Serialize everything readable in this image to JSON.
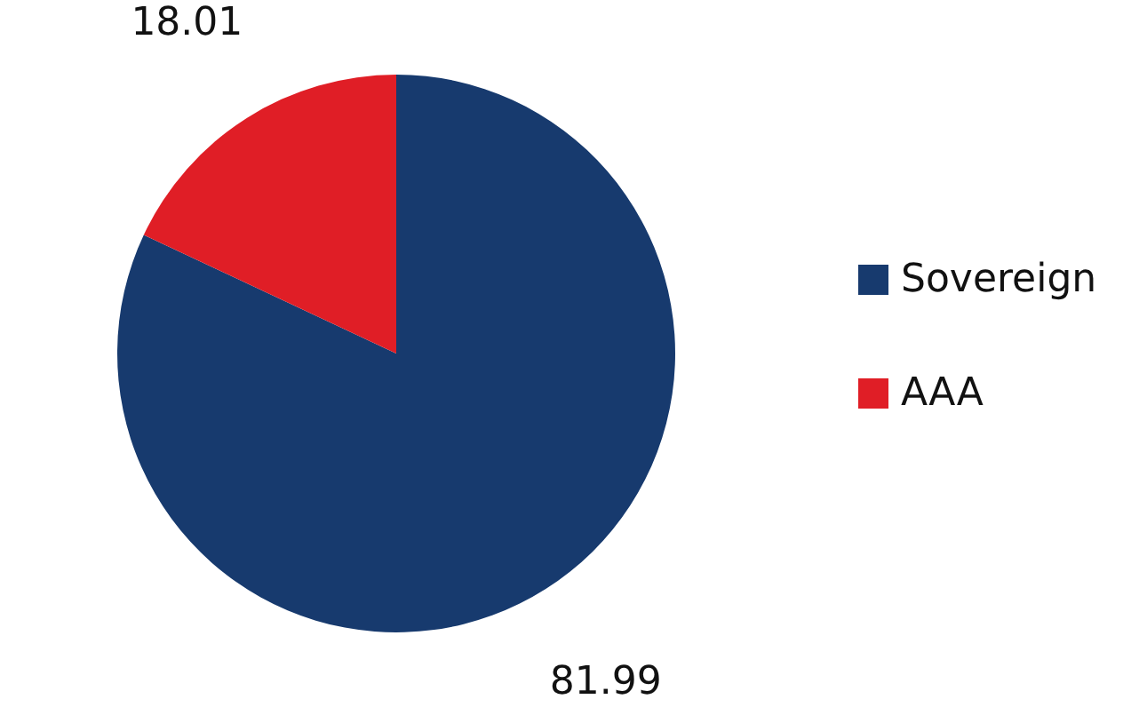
{
  "chart_data": {
    "type": "pie",
    "categories": [
      "Sovereign",
      "AAA"
    ],
    "values": [
      81.99,
      18.01
    ],
    "colors": [
      "#173a6e",
      "#e01e26"
    ],
    "data_labels": true,
    "legend": "right"
  }
}
